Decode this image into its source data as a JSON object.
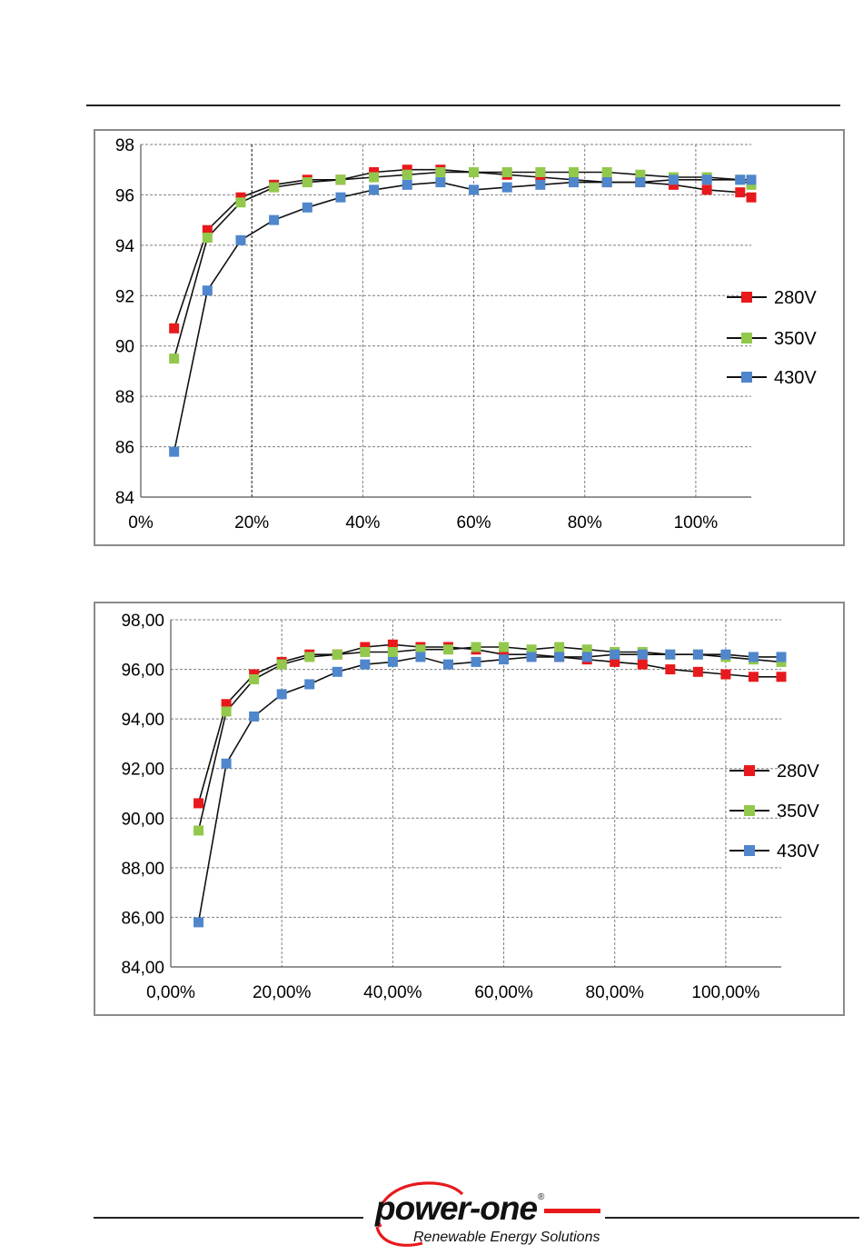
{
  "colors": {
    "s280": "#e8191c",
    "s350": "#92c94d",
    "s430": "#4f86cc",
    "line": "#111111",
    "grid": "#7f7f7f"
  },
  "logo": {
    "brand": "power-one",
    "registered": "®",
    "tagline": "Renewable Energy Solutions"
  },
  "chart_data": [
    {
      "type": "line",
      "y_tick_labels": [
        "84",
        "86",
        "88",
        "90",
        "92",
        "94",
        "96",
        "98"
      ],
      "x_tick_labels": [
        "0%",
        "20%",
        "40%",
        "60%",
        "80%",
        "100%"
      ],
      "xlim": [
        0,
        110
      ],
      "ylim": [
        84,
        98
      ],
      "grid": true,
      "legend": "right",
      "series": [
        {
          "name": "280V",
          "x": [
            6,
            12,
            18,
            24,
            30,
            36,
            42,
            48,
            54,
            60,
            66,
            72,
            78,
            84,
            90,
            96,
            102,
            108,
            110
          ],
          "y": [
            90.7,
            94.6,
            95.9,
            96.4,
            96.6,
            96.6,
            96.9,
            97.0,
            97.0,
            96.9,
            96.8,
            96.7,
            96.6,
            96.5,
            96.5,
            96.4,
            96.2,
            96.1,
            95.9
          ]
        },
        {
          "name": "350V",
          "x": [
            6,
            12,
            18,
            24,
            30,
            36,
            42,
            48,
            54,
            60,
            66,
            72,
            78,
            84,
            90,
            96,
            102,
            108,
            110
          ],
          "y": [
            89.5,
            94.3,
            95.7,
            96.3,
            96.5,
            96.6,
            96.7,
            96.8,
            96.9,
            96.9,
            96.9,
            96.9,
            96.9,
            96.9,
            96.8,
            96.7,
            96.7,
            96.6,
            96.4
          ]
        },
        {
          "name": "430V",
          "x": [
            6,
            12,
            18,
            24,
            30,
            36,
            42,
            48,
            54,
            60,
            66,
            72,
            78,
            84,
            90,
            96,
            102,
            108,
            110
          ],
          "y": [
            85.8,
            92.2,
            94.2,
            95.0,
            95.5,
            95.9,
            96.2,
            96.4,
            96.5,
            96.2,
            96.3,
            96.4,
            96.5,
            96.5,
            96.5,
            96.6,
            96.6,
            96.6,
            96.6
          ]
        }
      ]
    },
    {
      "type": "line",
      "y_tick_labels": [
        "84,00",
        "86,00",
        "88,00",
        "90,00",
        "92,00",
        "94,00",
        "96,00",
        "98,00"
      ],
      "x_tick_labels": [
        "0,00%",
        "20,00%",
        "40,00%",
        "60,00%",
        "80,00%",
        "100,00%"
      ],
      "xlim": [
        0,
        110
      ],
      "ylim": [
        84,
        98
      ],
      "grid": true,
      "legend": "right",
      "series": [
        {
          "name": "280V",
          "x": [
            5,
            10,
            15,
            20,
            25,
            30,
            35,
            40,
            45,
            50,
            55,
            60,
            65,
            70,
            75,
            80,
            85,
            90,
            95,
            100,
            105,
            110
          ],
          "y": [
            90.6,
            94.6,
            95.8,
            96.3,
            96.6,
            96.6,
            96.9,
            97.0,
            96.9,
            96.9,
            96.8,
            96.6,
            96.6,
            96.5,
            96.4,
            96.3,
            96.2,
            96.0,
            95.9,
            95.8,
            95.7,
            95.7
          ]
        },
        {
          "name": "350V",
          "x": [
            5,
            10,
            15,
            20,
            25,
            30,
            35,
            40,
            45,
            50,
            55,
            60,
            65,
            70,
            75,
            80,
            85,
            90,
            95,
            100,
            105,
            110
          ],
          "y": [
            89.5,
            94.3,
            95.6,
            96.2,
            96.5,
            96.6,
            96.7,
            96.7,
            96.8,
            96.8,
            96.9,
            96.9,
            96.8,
            96.9,
            96.8,
            96.7,
            96.7,
            96.6,
            96.6,
            96.5,
            96.4,
            96.3
          ]
        },
        {
          "name": "430V",
          "x": [
            5,
            10,
            15,
            20,
            25,
            30,
            35,
            40,
            45,
            50,
            55,
            60,
            65,
            70,
            75,
            80,
            85,
            90,
            95,
            100,
            105,
            110
          ],
          "y": [
            85.8,
            92.2,
            94.1,
            95.0,
            95.4,
            95.9,
            96.2,
            96.3,
            96.5,
            96.2,
            96.3,
            96.4,
            96.5,
            96.5,
            96.5,
            96.6,
            96.6,
            96.6,
            96.6,
            96.6,
            96.5,
            96.5
          ]
        }
      ]
    }
  ]
}
